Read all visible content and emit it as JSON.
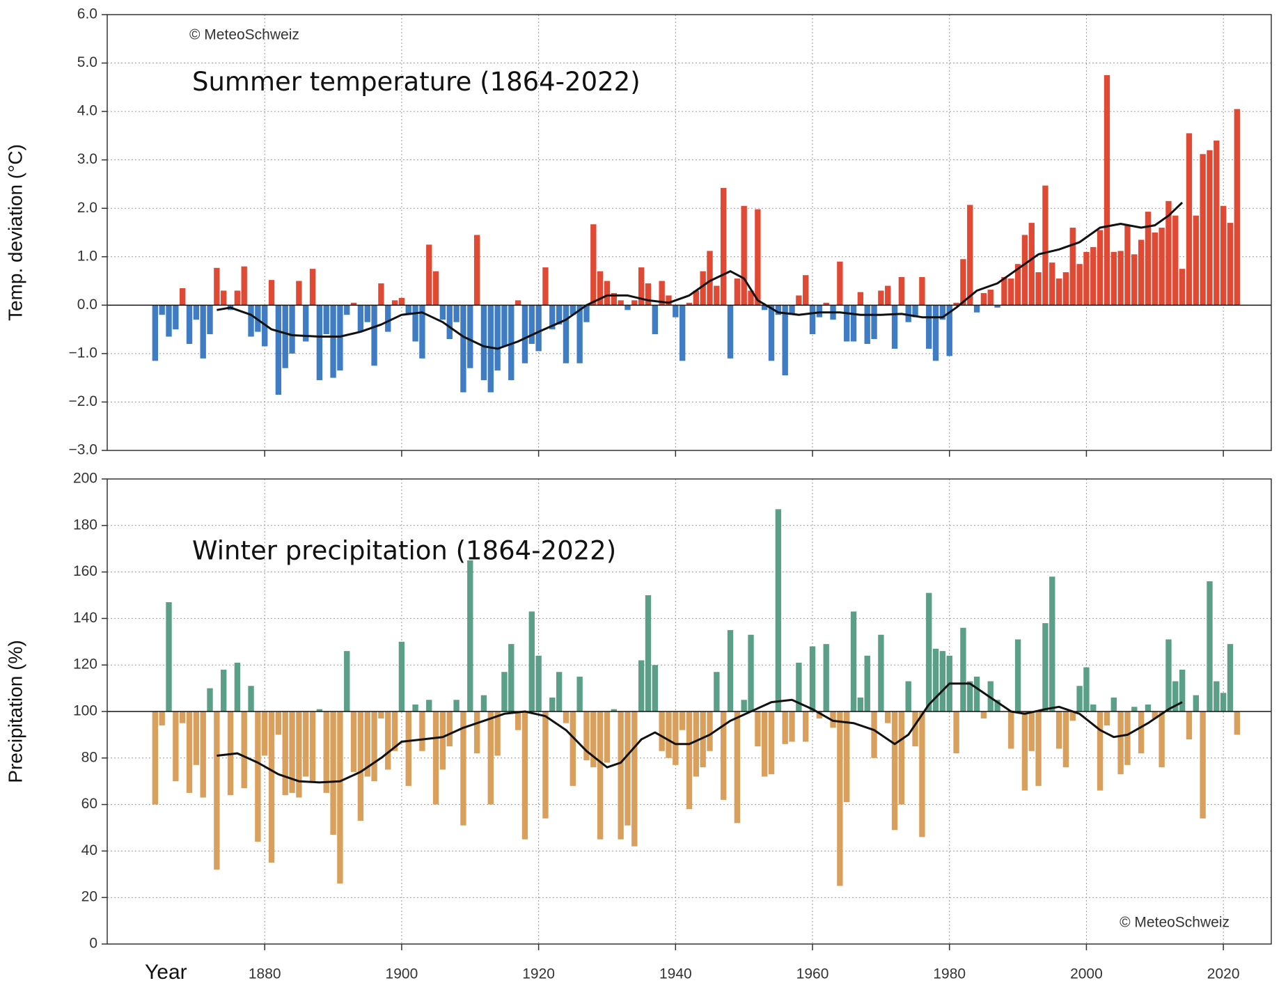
{
  "chart_data": [
    {
      "type": "bar",
      "title": "Summer temperature (1864-2022)",
      "ylabel": "Temp. deviation (°C)",
      "annotation": "© MeteoSchweiz",
      "x": [
        1864,
        1865,
        1866,
        1867,
        1868,
        1869,
        1870,
        1871,
        1872,
        1873,
        1874,
        1875,
        1876,
        1877,
        1878,
        1879,
        1880,
        1881,
        1882,
        1883,
        1884,
        1885,
        1886,
        1887,
        1888,
        1889,
        1890,
        1891,
        1892,
        1893,
        1894,
        1895,
        1896,
        1897,
        1898,
        1899,
        1900,
        1901,
        1902,
        1903,
        1904,
        1905,
        1906,
        1907,
        1908,
        1909,
        1910,
        1911,
        1912,
        1913,
        1914,
        1915,
        1916,
        1917,
        1918,
        1919,
        1920,
        1921,
        1922,
        1923,
        1924,
        1925,
        1926,
        1927,
        1928,
        1929,
        1930,
        1931,
        1932,
        1933,
        1934,
        1935,
        1936,
        1937,
        1938,
        1939,
        1940,
        1941,
        1942,
        1943,
        1944,
        1945,
        1946,
        1947,
        1948,
        1949,
        1950,
        1951,
        1952,
        1953,
        1954,
        1955,
        1956,
        1957,
        1958,
        1959,
        1960,
        1961,
        1962,
        1963,
        1964,
        1965,
        1966,
        1967,
        1968,
        1969,
        1970,
        1971,
        1972,
        1973,
        1974,
        1975,
        1976,
        1977,
        1978,
        1979,
        1980,
        1981,
        1982,
        1983,
        1984,
        1985,
        1986,
        1987,
        1988,
        1989,
        1990,
        1991,
        1992,
        1993,
        1994,
        1995,
        1996,
        1997,
        1998,
        1999,
        2000,
        2001,
        2002,
        2003,
        2004,
        2005,
        2006,
        2007,
        2008,
        2009,
        2010,
        2011,
        2012,
        2013,
        2014,
        2015,
        2016,
        2017,
        2018,
        2019,
        2020,
        2021,
        2022
      ],
      "values": [
        -1.15,
        -0.2,
        -0.65,
        -0.5,
        0.35,
        -0.8,
        -0.3,
        -1.1,
        -0.6,
        0.77,
        0.3,
        -0.1,
        0.3,
        0.8,
        -0.65,
        -0.55,
        -0.85,
        0.52,
        -1.85,
        -1.3,
        -1.0,
        0.5,
        -0.75,
        0.75,
        -1.55,
        -0.6,
        -1.5,
        -1.35,
        -0.2,
        0.05,
        -0.55,
        -0.35,
        -1.25,
        0.45,
        -0.55,
        0.1,
        0.15,
        -0.2,
        -0.75,
        -1.1,
        1.25,
        0.7,
        -0.3,
        -0.7,
        -0.35,
        -1.8,
        -1.3,
        1.45,
        -1.55,
        -1.8,
        -1.35,
        -0.85,
        -1.55,
        0.1,
        -1.2,
        -0.8,
        -0.95,
        0.78,
        -0.5,
        -0.4,
        -1.2,
        -0.2,
        -1.2,
        -0.35,
        1.67,
        0.7,
        0.5,
        0.25,
        0.1,
        -0.1,
        0.1,
        0.78,
        0.45,
        -0.6,
        0.5,
        0.2,
        -0.25,
        -1.15,
        0.05,
        0.3,
        0.7,
        1.12,
        0.4,
        2.42,
        -1.1,
        0.55,
        2.05,
        0.3,
        1.98,
        -0.1,
        -1.15,
        -0.2,
        -1.45,
        -0.2,
        0.2,
        0.62,
        -0.6,
        -0.25,
        0.05,
        -0.3,
        0.9,
        -0.75,
        -0.75,
        0.27,
        -0.8,
        -0.7,
        0.3,
        0.4,
        -0.9,
        0.58,
        -0.35,
        -0.25,
        0.58,
        -0.9,
        -1.15,
        -0.3,
        -1.05,
        0.05,
        0.95,
        2.07,
        -0.15,
        0.25,
        0.32,
        -0.05,
        0.58,
        0.55,
        0.85,
        1.45,
        1.7,
        0.68,
        2.47,
        0.88,
        0.55,
        0.68,
        1.6,
        0.85,
        1.1,
        1.2,
        1.55,
        4.75,
        1.1,
        1.12,
        1.65,
        1.05,
        1.35,
        1.93,
        1.5,
        1.6,
        2.15,
        1.85,
        0.75,
        3.55,
        1.85,
        3.12,
        3.2,
        3.4,
        2.05,
        1.7,
        4.05
      ],
      "baseline": 0,
      "color_above": "#e04a35",
      "color_below": "#3f7cc3",
      "smooth": {
        "color": "#111111",
        "x": [
          1873,
          1875,
          1878,
          1881,
          1884,
          1888,
          1891,
          1894,
          1897,
          1900,
          1903,
          1906,
          1909,
          1912,
          1914,
          1917,
          1920,
          1924,
          1927,
          1930,
          1933,
          1936,
          1939,
          1942,
          1945,
          1948,
          1950,
          1952,
          1955,
          1958,
          1961,
          1964,
          1967,
          1970,
          1973,
          1976,
          1979,
          1981,
          1984,
          1987,
          1990,
          1993,
          1996,
          1999,
          2002,
          2005,
          2008,
          2010,
          2012,
          2014
        ],
        "values": [
          -0.1,
          -0.05,
          -0.2,
          -0.5,
          -0.62,
          -0.65,
          -0.65,
          -0.55,
          -0.4,
          -0.2,
          -0.15,
          -0.35,
          -0.65,
          -0.85,
          -0.9,
          -0.75,
          -0.55,
          -0.3,
          0.0,
          0.2,
          0.2,
          0.1,
          0.05,
          0.2,
          0.5,
          0.7,
          0.55,
          0.1,
          -0.15,
          -0.2,
          -0.15,
          -0.15,
          -0.2,
          -0.2,
          -0.18,
          -0.25,
          -0.25,
          -0.05,
          0.3,
          0.45,
          0.75,
          1.05,
          1.15,
          1.3,
          1.6,
          1.68,
          1.6,
          1.65,
          1.85,
          2.12
        ]
      },
      "xlim": [
        1857,
        2027
      ],
      "xticks": [
        1880,
        1900,
        1920,
        1940,
        1960,
        1980,
        2000,
        2020
      ],
      "show_xtick_labels": false,
      "ylim": [
        -3,
        6
      ],
      "yticks": [
        {
          "value": -3,
          "label": "−3.0"
        },
        {
          "value": -2,
          "label": "−2.0"
        },
        {
          "value": -1,
          "label": "−1.0"
        },
        {
          "value": 0,
          "label": "0.0"
        },
        {
          "value": 1,
          "label": "1.0"
        },
        {
          "value": 2,
          "label": "2.0"
        },
        {
          "value": 3,
          "label": "3.0"
        },
        {
          "value": 4,
          "label": "4.0"
        },
        {
          "value": 5,
          "label": "5.0"
        },
        {
          "value": 6,
          "label": "6.0"
        }
      ],
      "grid": true,
      "annotation_corner": "top-left"
    },
    {
      "type": "bar",
      "title": "Winter precipitation (1864-2022)",
      "ylabel": "Precipitation (%)",
      "xlabel": "Year",
      "annotation": "© MeteoSchweiz",
      "x": [
        1864,
        1865,
        1866,
        1867,
        1868,
        1869,
        1870,
        1871,
        1872,
        1873,
        1874,
        1875,
        1876,
        1877,
        1878,
        1879,
        1880,
        1881,
        1882,
        1883,
        1884,
        1885,
        1886,
        1887,
        1888,
        1889,
        1890,
        1891,
        1892,
        1893,
        1894,
        1895,
        1896,
        1897,
        1898,
        1899,
        1900,
        1901,
        1902,
        1903,
        1904,
        1905,
        1906,
        1907,
        1908,
        1909,
        1910,
        1911,
        1912,
        1913,
        1914,
        1915,
        1916,
        1917,
        1918,
        1919,
        1920,
        1921,
        1922,
        1923,
        1924,
        1925,
        1926,
        1927,
        1928,
        1929,
        1930,
        1931,
        1932,
        1933,
        1934,
        1935,
        1936,
        1937,
        1938,
        1939,
        1940,
        1941,
        1942,
        1943,
        1944,
        1945,
        1946,
        1947,
        1948,
        1949,
        1950,
        1951,
        1952,
        1953,
        1954,
        1955,
        1956,
        1957,
        1958,
        1959,
        1960,
        1961,
        1962,
        1963,
        1964,
        1965,
        1966,
        1967,
        1968,
        1969,
        1970,
        1971,
        1972,
        1973,
        1974,
        1975,
        1976,
        1977,
        1978,
        1979,
        1980,
        1981,
        1982,
        1983,
        1984,
        1985,
        1986,
        1987,
        1988,
        1989,
        1990,
        1991,
        1992,
        1993,
        1994,
        1995,
        1996,
        1997,
        1998,
        1999,
        2000,
        2001,
        2002,
        2003,
        2004,
        2005,
        2006,
        2007,
        2008,
        2009,
        2010,
        2011,
        2012,
        2013,
        2014,
        2015,
        2016,
        2017,
        2018,
        2019,
        2020,
        2021,
        2022
      ],
      "values": [
        60,
        94,
        147,
        70,
        95,
        65,
        77,
        63,
        110,
        32,
        118,
        64,
        121,
        67,
        111,
        44,
        81,
        35,
        90,
        64,
        65,
        63,
        72,
        70,
        101,
        65,
        47,
        26,
        126,
        74,
        53,
        72,
        70,
        97,
        75,
        83,
        130,
        68,
        103,
        83,
        105,
        60,
        75,
        85,
        105,
        51,
        165,
        82,
        107,
        60,
        81,
        117,
        129,
        92,
        45,
        143,
        124,
        54,
        106,
        117,
        95,
        68,
        115,
        79,
        76,
        45,
        78,
        101,
        45,
        51,
        42,
        122,
        150,
        120,
        83,
        80,
        77,
        92,
        58,
        72,
        76,
        83,
        117,
        62,
        135,
        52,
        105,
        133,
        85,
        72,
        73,
        187,
        86,
        87,
        121,
        87,
        128,
        97,
        129,
        93,
        25,
        61,
        143,
        106,
        124,
        80,
        133,
        95,
        49,
        60,
        113,
        85,
        46,
        151,
        127,
        126,
        124,
        82,
        136,
        113,
        115,
        97,
        113,
        105,
        100,
        84,
        131,
        66,
        83,
        68,
        138,
        158,
        84,
        76,
        96,
        111,
        119,
        103,
        66,
        94,
        106,
        73,
        77,
        102,
        82,
        103,
        97,
        76,
        131,
        113,
        118,
        88,
        107,
        54,
        156,
        113,
        108,
        129,
        90
      ],
      "baseline": 100,
      "color_above": "#5b9f88",
      "color_below": "#d99f5c",
      "smooth": {
        "color": "#111111",
        "x": [
          1873,
          1876,
          1879,
          1882,
          1885,
          1888,
          1891,
          1894,
          1897,
          1900,
          1903,
          1906,
          1909,
          1912,
          1915,
          1918,
          1921,
          1924,
          1927,
          1930,
          1932,
          1935,
          1937,
          1940,
          1942,
          1945,
          1948,
          1951,
          1954,
          1957,
          1960,
          1963,
          1966,
          1969,
          1972,
          1974,
          1977,
          1980,
          1983,
          1986,
          1989,
          1991,
          1994,
          1996,
          1999,
          2002,
          2004,
          2006,
          2009,
          2012,
          2014
        ],
        "values": [
          81,
          82,
          78,
          73,
          70,
          69.5,
          70,
          74,
          80,
          87,
          88,
          89,
          93,
          96,
          99,
          100,
          98,
          92,
          83,
          76,
          78,
          88,
          91,
          86,
          86,
          90,
          96,
          100,
          104,
          105,
          101,
          96,
          95,
          92,
          86,
          90,
          103,
          112,
          112,
          106,
          100,
          99,
          101,
          102,
          99,
          92,
          89,
          90,
          95,
          101,
          104
        ]
      },
      "xlim": [
        1857,
        2027
      ],
      "xticks": [
        1880,
        1900,
        1920,
        1940,
        1960,
        1980,
        2000,
        2020
      ],
      "show_xtick_labels": true,
      "ylim": [
        0,
        200
      ],
      "yticks": [
        0,
        20,
        40,
        60,
        80,
        100,
        120,
        140,
        160,
        180,
        200
      ],
      "grid": true,
      "annotation_corner": "bottom-right"
    }
  ]
}
